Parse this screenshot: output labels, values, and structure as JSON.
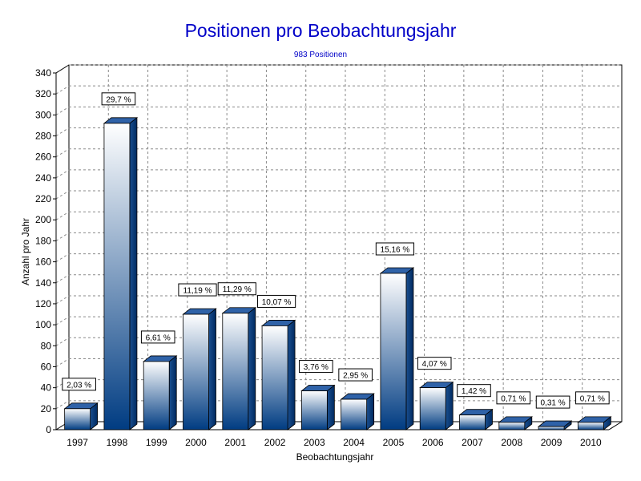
{
  "chart_data": {
    "type": "bar",
    "title": "Positionen pro Beobachtungsjahr",
    "subtitle": "983 Positionen",
    "xlabel": "Beobachtungsjahr",
    "ylabel": "Anzahl pro Jahr",
    "ylim": [
      0,
      340
    ],
    "yticks": [
      "0",
      "20",
      "40",
      "60",
      "80",
      "100",
      "120",
      "140",
      "160",
      "180",
      "200",
      "220",
      "240",
      "260",
      "280",
      "300",
      "320",
      "340"
    ],
    "grid": true,
    "categories": [
      "1997",
      "1998",
      "1999",
      "2000",
      "2001",
      "2002",
      "2003",
      "2004",
      "2005",
      "2006",
      "2007",
      "2008",
      "2009",
      "2010"
    ],
    "values": [
      20,
      292,
      65,
      110,
      111,
      99,
      37,
      29,
      149,
      40,
      14,
      7,
      3,
      7
    ],
    "data_labels": [
      "2,03 %",
      "29,7 %",
      "6,61 %",
      "11,19 %",
      "11,29 %",
      "10,07 %",
      "3,76 %",
      "2,95 %",
      "15,16 %",
      "4,07 %",
      "1,42 %",
      "0,71 %",
      "0,31 %",
      "0,71 %"
    ],
    "colors": {
      "bar_top": "#ffffff",
      "bar_bottom": "#003c82",
      "side": "#0b3f7e",
      "cap": "#2f62a8",
      "title": "#0000c8"
    }
  }
}
